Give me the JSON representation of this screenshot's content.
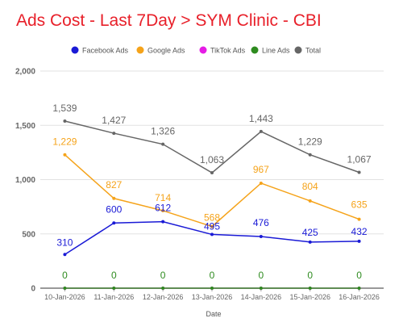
{
  "title": "Ads Cost - Last 7Day > SYM Clinic - CBI",
  "chart_data": {
    "type": "line",
    "title": "Ads Cost - Last 7Day > SYM Clinic - CBI",
    "xlabel": "Date",
    "ylabel": "",
    "categories": [
      "10-Jan-2026",
      "11-Jan-2026",
      "12-Jan-2026",
      "13-Jan-2026",
      "14-Jan-2026",
      "15-Jan-2026",
      "16-Jan-2026"
    ],
    "ylim": [
      0,
      2000
    ],
    "yticks": [
      0,
      500,
      1000,
      1500,
      2000
    ],
    "ytick_labels": [
      "0",
      "500",
      "1,000",
      "1,500",
      "2,000"
    ],
    "grid": true,
    "legend_position": "top",
    "series": [
      {
        "name": "Facebook Ads",
        "color": "#1a1ad6",
        "values": [
          310,
          600,
          612,
          495,
          476,
          425,
          432
        ],
        "labels": [
          "310",
          "600",
          "612",
          "495",
          "476",
          "425",
          "432"
        ]
      },
      {
        "name": "Google Ads",
        "color": "#f5a31a",
        "values": [
          1229,
          827,
          714,
          568,
          967,
          804,
          635
        ],
        "labels": [
          "1,229",
          "827",
          "714",
          "568",
          "967",
          "804",
          "635"
        ]
      },
      {
        "name": "TikTok Ads",
        "color": "#e51ce5",
        "values": [
          0,
          0,
          0,
          0,
          0,
          0,
          0
        ],
        "labels": []
      },
      {
        "name": "Line Ads",
        "color": "#2e8b1f",
        "values": [
          0,
          0,
          0,
          0,
          0,
          0,
          0
        ],
        "labels": [
          "0",
          "0",
          "0",
          "0",
          "0",
          "0",
          "0"
        ]
      },
      {
        "name": "Total",
        "color": "#666666",
        "values": [
          1539,
          1427,
          1326,
          1063,
          1443,
          1229,
          1067
        ],
        "labels": [
          "1,539",
          "1,427",
          "1,326",
          "1,063",
          "1,443",
          "1,229",
          "1,067"
        ]
      }
    ]
  }
}
